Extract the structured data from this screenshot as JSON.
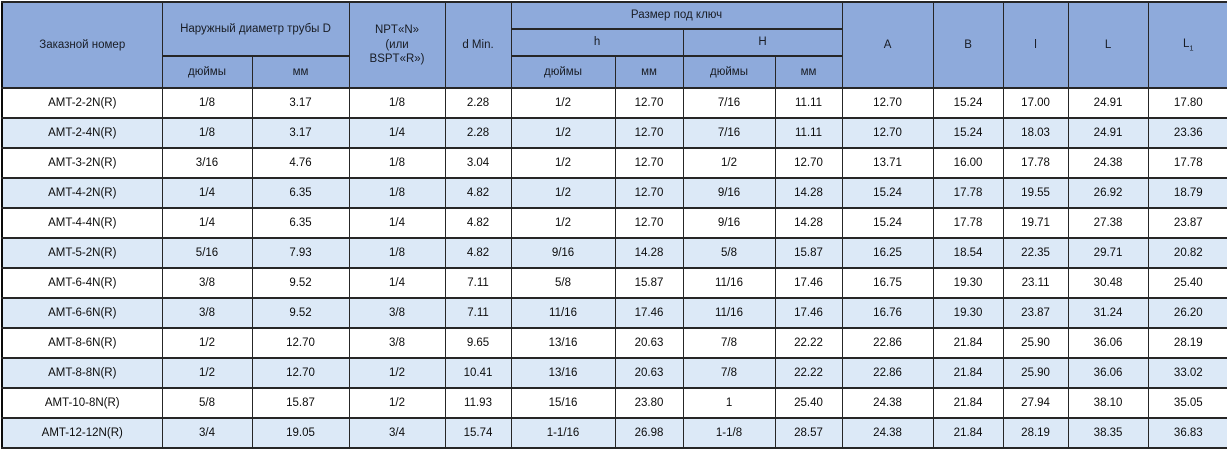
{
  "header": {
    "order_number": "Заказной номер",
    "outer_diameter_group": "Наружный диаметр трубы D",
    "npt": "NPT«N»\n(или\nBSPT«R»)",
    "d_min": "d Min.",
    "wrench_size_group": "Размер под ключ",
    "h_lower": "h",
    "h_upper": "H",
    "inches_d": "дюймы",
    "mm_d": "мм",
    "inches_h": "дюймы",
    "mm_h": "мм",
    "inches_hh": "дюймы",
    "mm_hh": "мм",
    "col_a": "A",
    "col_b": "B",
    "col_l_lower": "l",
    "col_l_upper": "L",
    "col_l1_base": "L",
    "col_l1_sub": "1"
  },
  "table": {
    "rows": [
      [
        "AMT-2-2N(R)",
        "1/8",
        "3.17",
        "1/8",
        "2.28",
        "1/2",
        "12.70",
        "7/16",
        "11.11",
        "12.70",
        "15.24",
        "17.00",
        "24.91",
        "17.80"
      ],
      [
        "AMT-2-4N(R)",
        "1/8",
        "3.17",
        "1/4",
        "2.28",
        "1/2",
        "12.70",
        "7/16",
        "11.11",
        "12.70",
        "15.24",
        "18.03",
        "24.91",
        "23.36"
      ],
      [
        "AMT-3-2N(R)",
        "3/16",
        "4.76",
        "1/8",
        "3.04",
        "1/2",
        "12.70",
        "1/2",
        "12.70",
        "13.71",
        "16.00",
        "17.78",
        "24.38",
        "17.78"
      ],
      [
        "AMT-4-2N(R)",
        "1/4",
        "6.35",
        "1/8",
        "4.82",
        "1/2",
        "12.70",
        "9/16",
        "14.28",
        "15.24",
        "17.78",
        "19.55",
        "26.92",
        "18.79"
      ],
      [
        "AMT-4-4N(R)",
        "1/4",
        "6.35",
        "1/4",
        "4.82",
        "1/2",
        "12.70",
        "9/16",
        "14.28",
        "15.24",
        "17.78",
        "19.71",
        "27.38",
        "23.87"
      ],
      [
        "AMT-5-2N(R)",
        "5/16",
        "7.93",
        "1/8",
        "4.82",
        "9/16",
        "14.28",
        "5/8",
        "15.87",
        "16.25",
        "18.54",
        "22.35",
        "29.71",
        "20.82"
      ],
      [
        "AMT-6-4N(R)",
        "3/8",
        "9.52",
        "1/4",
        "7.11",
        "5/8",
        "15.87",
        "11/16",
        "17.46",
        "16.75",
        "19.30",
        "23.11",
        "30.48",
        "25.40"
      ],
      [
        "AMT-6-6N(R)",
        "3/8",
        "9.52",
        "3/8",
        "7.11",
        "11/16",
        "17.46",
        "11/16",
        "17.46",
        "16.76",
        "19.30",
        "23.87",
        "31.24",
        "26.20"
      ],
      [
        "AMT-8-6N(R)",
        "1/2",
        "12.70",
        "3/8",
        "9.65",
        "13/16",
        "20.63",
        "7/8",
        "22.22",
        "22.86",
        "21.84",
        "25.90",
        "36.06",
        "28.19"
      ],
      [
        "AMT-8-8N(R)",
        "1/2",
        "12.70",
        "1/2",
        "10.41",
        "13/16",
        "20.63",
        "7/8",
        "22.22",
        "22.86",
        "21.84",
        "25.90",
        "36.06",
        "33.02"
      ],
      [
        "AMT-10-8N(R)",
        "5/8",
        "15.87",
        "1/2",
        "11.93",
        "15/16",
        "23.80",
        "1",
        "25.40",
        "24.38",
        "21.84",
        "27.94",
        "38.10",
        "35.05"
      ],
      [
        "AMT-12-12N(R)",
        "3/4",
        "19.05",
        "3/4",
        "15.74",
        "1-1/16",
        "26.98",
        "1-1/8",
        "28.57",
        "24.38",
        "21.84",
        "28.19",
        "38.35",
        "36.83"
      ]
    ]
  },
  "colors": {
    "header_bg": "#8EAADB",
    "stripe_bg": "#DCE9F7",
    "border": "#262626"
  }
}
